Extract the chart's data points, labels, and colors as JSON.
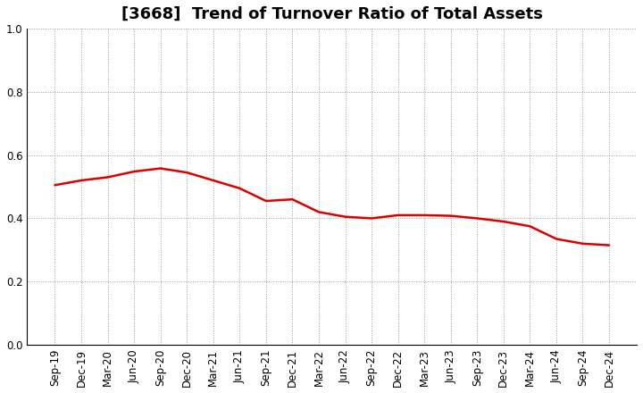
{
  "title": "[3668]  Trend of Turnover Ratio of Total Assets",
  "x_labels": [
    "Sep-19",
    "Dec-19",
    "Mar-20",
    "Jun-20",
    "Sep-20",
    "Dec-20",
    "Mar-21",
    "Jun-21",
    "Sep-21",
    "Dec-21",
    "Mar-22",
    "Jun-22",
    "Sep-22",
    "Dec-22",
    "Mar-23",
    "Jun-23",
    "Sep-23",
    "Dec-23",
    "Mar-24",
    "Jun-24",
    "Sep-24",
    "Dec-24"
  ],
  "y_values": [
    0.505,
    0.52,
    0.53,
    0.548,
    0.558,
    0.545,
    0.52,
    0.495,
    0.455,
    0.46,
    0.42,
    0.405,
    0.4,
    0.41,
    0.41,
    0.408,
    0.4,
    0.39,
    0.375,
    0.335,
    0.32,
    0.315
  ],
  "line_color": "#dd0000",
  "line_width": 1.8,
  "ylim": [
    0.0,
    1.0
  ],
  "yticks": [
    0.0,
    0.2,
    0.4,
    0.6,
    0.8,
    1.0
  ],
  "grid_color": "#999999",
  "background_color": "#ffffff",
  "title_fontsize": 13,
  "tick_fontsize": 8.5,
  "spine_color": "#000000"
}
